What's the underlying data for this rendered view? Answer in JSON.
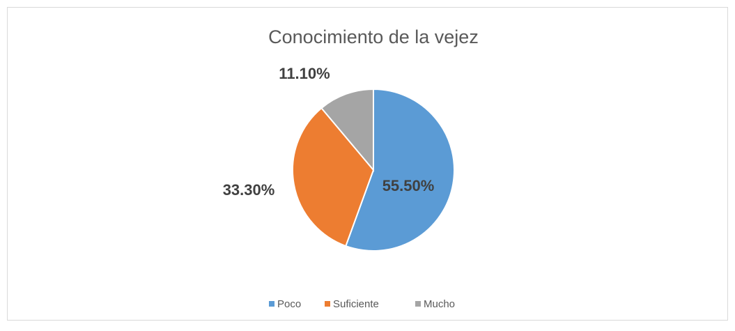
{
  "chart_data": {
    "type": "pie",
    "title": "Conocimiento de la vejez",
    "categories": [
      "Poco",
      "Suficiente",
      "Mucho"
    ],
    "values": [
      55.5,
      33.3,
      11.1
    ],
    "value_labels": [
      "55.50%",
      "33.30%",
      "11.10%"
    ],
    "colors": [
      "#5b9bd5",
      "#ed7d31",
      "#a5a5a5"
    ],
    "legend": "bottom"
  }
}
